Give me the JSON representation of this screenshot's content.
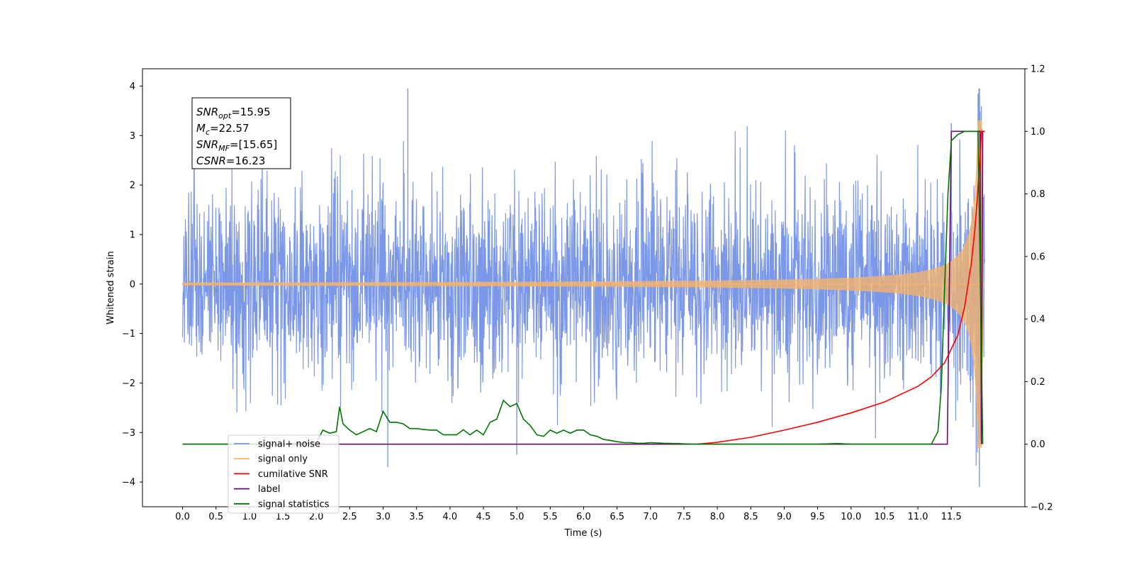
{
  "chart_data": {
    "type": "line",
    "title": "",
    "xlabel": "Time (s)",
    "ylabel": "Whitened strain",
    "y2label": "",
    "xlim": [
      -0.6,
      12.6
    ],
    "ylim": [
      -4.5,
      4.35
    ],
    "y2lim": [
      -0.2,
      1.2
    ],
    "xticks": [
      0.0,
      0.5,
      1.0,
      1.5,
      2.0,
      2.5,
      3.0,
      3.5,
      4.0,
      4.5,
      5.0,
      5.5,
      6.0,
      6.5,
      7.0,
      7.5,
      8.0,
      8.5,
      9.0,
      9.5,
      10.0,
      10.5,
      11.0,
      11.5
    ],
    "xtick_labels": [
      "0.0",
      "0.5",
      "1.0",
      "1.5",
      "2.0",
      "2.5",
      "3.0",
      "3.5",
      "4.0",
      "4.5",
      "5.0",
      "5.5",
      "6.0",
      "6.5",
      "7.0",
      "7.5",
      "8.0",
      "8.5",
      "9.0",
      "9.5",
      "10.0",
      "10.5",
      "11.0",
      "11.5"
    ],
    "yticks": [
      4,
      3,
      2,
      1,
      0,
      -1,
      -2,
      -3,
      -4
    ],
    "ytick_labels": [
      "4",
      "3",
      "2",
      "1",
      "0",
      "−1",
      "−2",
      "−3",
      "−4"
    ],
    "y2ticks": [
      1.2,
      1.0,
      0.8,
      0.6,
      0.4,
      0.2,
      0.0,
      -0.2
    ],
    "y2tick_labels": [
      "1.2",
      "1.0",
      "0.8",
      "0.6",
      "0.4",
      "0.2",
      "0.0",
      "−0.2"
    ],
    "grid": false,
    "legend_position": "lower-left",
    "annotation": {
      "lines": [
        {
          "sym": "SNR",
          "sub": "opt",
          "val": "=15.95"
        },
        {
          "sym": "M",
          "sub": "c",
          "val": "=22.57"
        },
        {
          "sym": "SNR",
          "sub": "MF",
          "val": "=[15.65]"
        },
        {
          "sym": "CSNR",
          "sub": "",
          "val": "=16.23"
        }
      ]
    },
    "series": [
      {
        "name": "signal+ noise",
        "color": "#7b97e8",
        "axis": "left",
        "kind": "noise",
        "x_range": [
          0.0,
          12.0
        ],
        "typical_amplitude": 1.6,
        "peak_max": 3.95,
        "peak_min": -4.1
      },
      {
        "name": "signal only",
        "color": "#f5b36b",
        "axis": "left",
        "kind": "chirp",
        "x_range": [
          0.0,
          12.0
        ],
        "max_amplitude": 3.3,
        "merger_time": 11.95
      },
      {
        "name": "cumilative SNR",
        "color": "#ff0000",
        "axis": "right",
        "x": [
          7.5,
          7.7,
          8.0,
          8.5,
          9.0,
          9.5,
          10.0,
          10.5,
          11.0,
          11.2,
          11.4,
          11.6,
          11.7,
          11.8,
          11.85,
          11.9,
          11.93,
          11.95,
          11.98,
          12.0
        ],
        "y": [
          0.0,
          0.0,
          0.006,
          0.022,
          0.045,
          0.07,
          0.1,
          0.135,
          0.185,
          0.215,
          0.26,
          0.35,
          0.44,
          0.58,
          0.68,
          0.82,
          0.92,
          1.0,
          1.0,
          1.0
        ]
      },
      {
        "name": "label",
        "color": "#6a0d6a",
        "axis": "right",
        "x": [
          0.0,
          11.44,
          11.5,
          11.93,
          11.95,
          11.97,
          12.0
        ],
        "y": [
          0.0,
          0.0,
          1.0,
          1.0,
          0.0,
          1.0,
          1.0
        ]
      },
      {
        "name": "signal statistics",
        "color": "#007400",
        "axis": "right",
        "x": [
          0.0,
          0.5,
          1.0,
          1.5,
          2.0,
          2.1,
          2.2,
          2.3,
          2.35,
          2.4,
          2.5,
          2.6,
          2.7,
          2.8,
          2.9,
          3.0,
          3.1,
          3.2,
          3.3,
          3.4,
          3.5,
          3.6,
          3.7,
          3.8,
          3.9,
          4.0,
          4.1,
          4.2,
          4.3,
          4.4,
          4.5,
          4.6,
          4.7,
          4.8,
          4.9,
          5.0,
          5.1,
          5.2,
          5.3,
          5.4,
          5.5,
          5.6,
          5.7,
          5.8,
          5.9,
          6.0,
          6.1,
          6.2,
          6.3,
          6.4,
          6.5,
          6.6,
          6.7,
          6.8,
          6.9,
          7.0,
          7.2,
          7.4,
          7.6,
          8.0,
          8.5,
          9.0,
          9.5,
          9.8,
          10.0,
          10.5,
          11.0,
          11.2,
          11.3,
          11.35,
          11.4,
          11.45,
          11.5,
          11.6,
          11.7,
          11.8,
          11.9,
          11.95,
          11.97
        ],
        "y": [
          0.0,
          0.0,
          0.0,
          0.0,
          0.005,
          0.045,
          0.035,
          0.04,
          0.12,
          0.065,
          0.045,
          0.03,
          0.04,
          0.05,
          0.04,
          0.105,
          0.07,
          0.07,
          0.065,
          0.05,
          0.05,
          0.047,
          0.045,
          0.045,
          0.03,
          0.03,
          0.03,
          0.046,
          0.03,
          0.045,
          0.03,
          0.07,
          0.08,
          0.14,
          0.12,
          0.13,
          0.08,
          0.06,
          0.03,
          0.025,
          0.045,
          0.035,
          0.045,
          0.035,
          0.045,
          0.045,
          0.03,
          0.025,
          0.015,
          0.012,
          0.008,
          0.005,
          0.005,
          0.003,
          0.003,
          0.005,
          0.003,
          0.002,
          0.0,
          0.0,
          0.0,
          0.0,
          0.0,
          0.002,
          0.0,
          0.0,
          0.0,
          0.0,
          0.04,
          0.18,
          0.5,
          0.8,
          0.97,
          0.99,
          1.0,
          1.0,
          1.0,
          0.3,
          0.0
        ]
      }
    ]
  }
}
